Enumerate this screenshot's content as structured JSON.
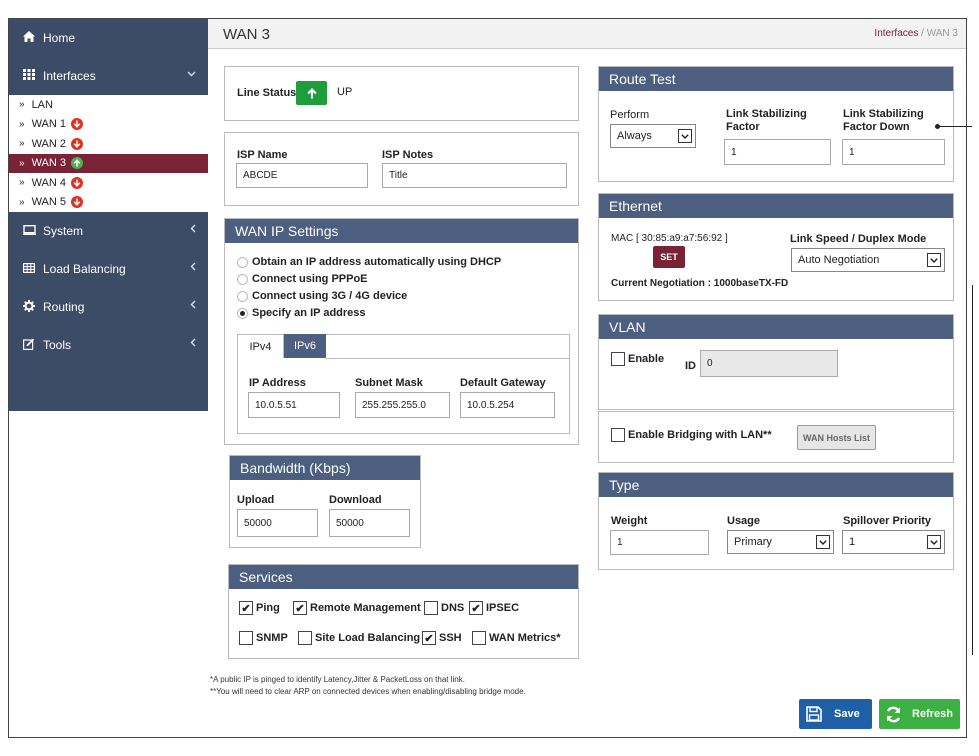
{
  "sidebar": {
    "home": "Home",
    "interfaces": "Interfaces",
    "system": "System",
    "load_balancing": "Load Balancing",
    "routing": "Routing",
    "tools": "Tools",
    "subitems": [
      {
        "label": "LAN",
        "status": "none"
      },
      {
        "label": "WAN 1",
        "status": "down"
      },
      {
        "label": "WAN 2",
        "status": "down"
      },
      {
        "label": "WAN 3",
        "status": "up"
      },
      {
        "label": "WAN 4",
        "status": "down"
      },
      {
        "label": "WAN 5",
        "status": "down"
      }
    ]
  },
  "header": {
    "title": "WAN 3",
    "breadcrumb_link": "Interfaces",
    "breadcrumb_sep": "/",
    "breadcrumb_current": "WAN 3"
  },
  "line_status": {
    "label": "Line Status",
    "value": "UP"
  },
  "isp": {
    "name_label": "ISP Name",
    "name_value": "ABCDE",
    "notes_label": "ISP Notes",
    "notes_value": "Title"
  },
  "wan_ip": {
    "title": "WAN IP Settings",
    "options": [
      "Obtain an IP address automatically using DHCP",
      "Connect using PPPoE",
      "Connect using 3G / 4G device",
      "Specify an IP address"
    ],
    "selected_index": 3,
    "tabs": [
      "IPv4",
      "IPv6"
    ],
    "ip_label": "IP Address",
    "ip_value": "10.0.5.51",
    "mask_label": "Subnet Mask",
    "mask_value": "255.255.255.0",
    "gw_label": "Default Gateway",
    "gw_value": "10.0.5.254"
  },
  "bandwidth": {
    "title": "Bandwidth (Kbps)",
    "upload_label": "Upload",
    "upload_value": "50000",
    "download_label": "Download",
    "download_value": "50000"
  },
  "services": {
    "title": "Services",
    "row1": [
      {
        "label": "Ping",
        "checked": true
      },
      {
        "label": "Remote Management",
        "checked": true
      },
      {
        "label": "DNS",
        "checked": false
      },
      {
        "label": "IPSEC",
        "checked": true
      }
    ],
    "row2": [
      {
        "label": "SNMP",
        "checked": false
      },
      {
        "label": "Site Load Balancing",
        "checked": false
      },
      {
        "label": "SSH",
        "checked": true
      },
      {
        "label": "WAN Metrics*",
        "checked": false
      }
    ]
  },
  "notes": {
    "n1": "*A public IP is pinged to identify Latency,Jitter & PacketLoss on that link.",
    "n2": "**You will need to clear ARP on connected devices when enabling/disabling bridge mode."
  },
  "route_test": {
    "title": "Route Test",
    "perform_label": "Perform",
    "perform_value": "Always",
    "lsf_label": "Link Stabilizing Factor",
    "lsf_value": "1",
    "lsfd_label": "Link Stabilizing Factor Down",
    "lsfd_value": "1"
  },
  "ethernet": {
    "title": "Ethernet",
    "mac_label": "MAC [ 30:85:a9:a7:56:92 ]",
    "set_label": "SET",
    "speed_label": "Link Speed / Duplex Mode",
    "speed_value": "Auto Negotiation",
    "negotiation": "Current Negotiation : 1000baseTX-FD"
  },
  "vlan": {
    "title": "VLAN",
    "enable_label": "Enable",
    "id_label": "ID",
    "id_value": "0"
  },
  "bridging": {
    "label": "Enable Bridging with LAN**",
    "hosts_button": "WAN Hosts List"
  },
  "type": {
    "title": "Type",
    "weight_label": "Weight",
    "weight_value": "1",
    "usage_label": "Usage",
    "usage_value": "Primary",
    "spill_label": "Spillover Priority",
    "spill_value": "1"
  },
  "actions": {
    "save": "Save",
    "refresh": "Refresh"
  },
  "colors": {
    "nav": "#3d4c66",
    "active": "#7a2236",
    "panel_header": "#4d5f80",
    "up": "#1e9e3a",
    "down": "#e03020",
    "save": "#1f5fa8",
    "refresh": "#3cb043"
  }
}
